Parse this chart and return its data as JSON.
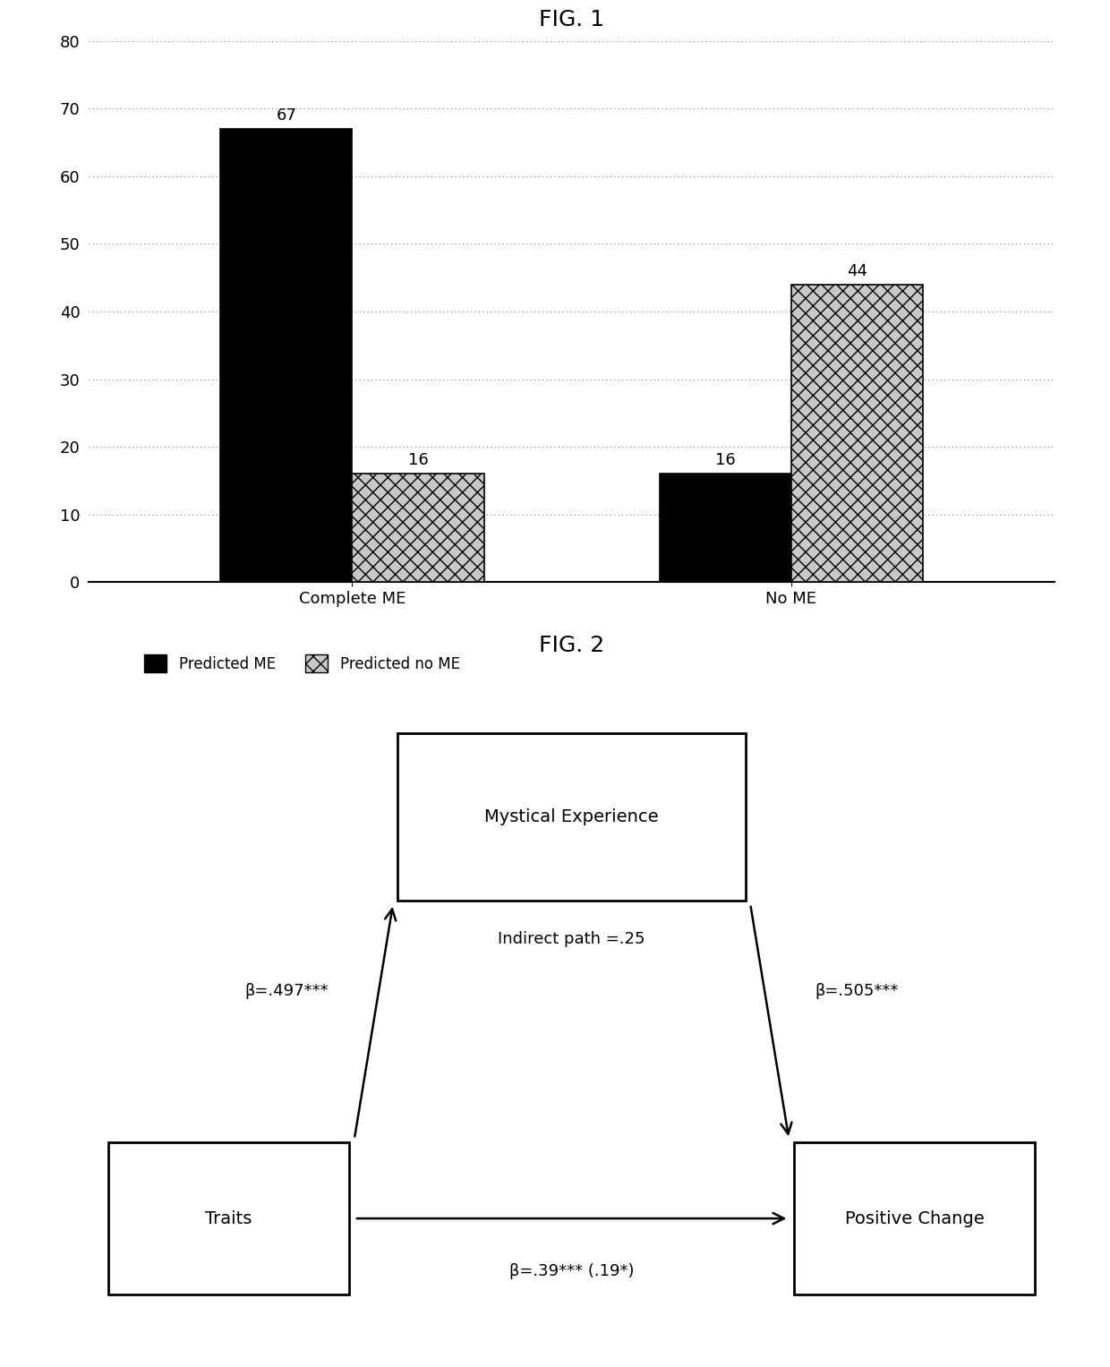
{
  "fig1_title": "FIG. 1",
  "fig2_title": "FIG. 2",
  "categories": [
    "Complete ME",
    "No ME"
  ],
  "predicted_me_values": [
    67,
    16
  ],
  "predicted_no_me_values": [
    16,
    44
  ],
  "bar_color_solid": "#000000",
  "bar_color_hatch": "#c8c8c8",
  "hatch_pattern": "xx",
  "ylim": [
    0,
    80
  ],
  "yticks": [
    0,
    10,
    20,
    30,
    40,
    50,
    60,
    70,
    80
  ],
  "legend_label_solid": "Predicted ME",
  "legend_label_hatch": "Predicted no ME",
  "bar_width": 0.3,
  "bar_label_fontsize": 13,
  "axis_label_fontsize": 13,
  "title_fontsize": 18,
  "fig2_arrow_left_label": "β=.497***",
  "fig2_arrow_right_label": "β=.505***",
  "fig2_arrow_bottom_label": "β=.39*** (.19*)",
  "fig2_indirect_label": "Indirect path =.25",
  "background_color": "#ffffff"
}
